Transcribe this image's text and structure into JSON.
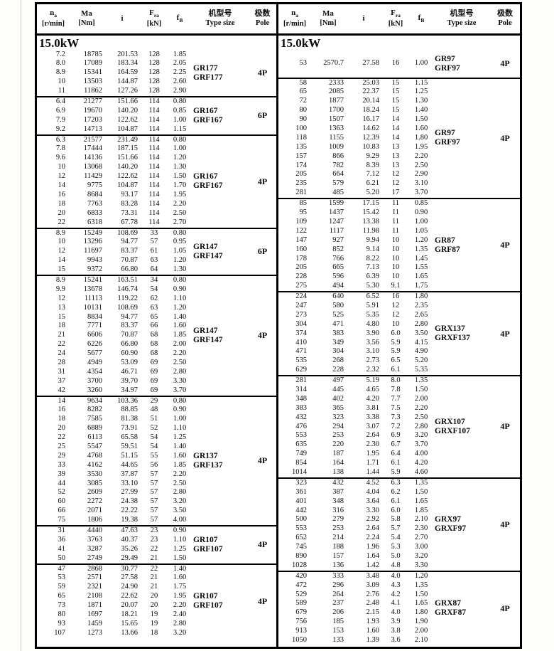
{
  "page": {
    "power_label": "15.0kW"
  },
  "header": {
    "cols": [
      {
        "key": "na",
        "sym": "n",
        "sub": "a",
        "unit": "[r/min]"
      },
      {
        "key": "ma",
        "sym": "Ma",
        "sub": "",
        "unit": "[Nm]"
      },
      {
        "key": "i",
        "sym": "i",
        "sub": "",
        "unit": ""
      },
      {
        "key": "fra",
        "sym": "F",
        "sub": "ra",
        "unit": "[kN]"
      },
      {
        "key": "fb",
        "sym": "f",
        "sub": "B",
        "unit": ""
      },
      {
        "key": "type",
        "cn": "机型号",
        "en": "Type size"
      },
      {
        "key": "pole",
        "cn": "极数",
        "en": "Pole"
      }
    ]
  },
  "left_groups": [
    {
      "type_lines": [
        "GR177",
        "GRF177"
      ],
      "pole": "4P",
      "rows": [
        [
          "7.2",
          "18785",
          "201.53",
          "128",
          "1.85"
        ],
        [
          "8.0",
          "17089",
          "183.34",
          "128",
          "2.05"
        ],
        [
          "8.9",
          "15341",
          "164.59",
          "128",
          "2.25"
        ],
        [
          "10",
          "13503",
          "144.87",
          "128",
          "2.60"
        ],
        [
          "11",
          "11862",
          "127.26",
          "128",
          "2.90"
        ]
      ]
    },
    {
      "type_lines": [
        "GR167",
        "GRF167"
      ],
      "pole": "6P",
      "rows": [
        [
          "6.4",
          "21277",
          "151.66",
          "114",
          "0.80"
        ],
        [
          "6.9",
          "19670",
          "140.20",
          "114",
          "0.85"
        ],
        [
          "7.9",
          "17203",
          "122.62",
          "114",
          "1.00"
        ],
        [
          "9.2",
          "14713",
          "104.87",
          "114",
          "1.15"
        ]
      ]
    },
    {
      "type_lines": [
        "GR167",
        "GRF167"
      ],
      "pole": "4P",
      "rows": [
        [
          "6.3",
          "21577",
          "231.49",
          "114",
          "0.80"
        ],
        [
          "7.8",
          "17444",
          "187.15",
          "114",
          "1.00"
        ],
        [
          "9.6",
          "14136",
          "151.66",
          "114",
          "1.20"
        ],
        [
          "10",
          "13068",
          "140.20",
          "114",
          "1.30"
        ],
        [
          "12",
          "11429",
          "122.62",
          "114",
          "1.50"
        ],
        [
          "14",
          "9775",
          "104.87",
          "114",
          "1.70"
        ],
        [
          "16",
          "8684",
          "93.17",
          "114",
          "1.95"
        ],
        [
          "18",
          "7763",
          "83.28",
          "114",
          "2.20"
        ],
        [
          "20",
          "6833",
          "73.31",
          "114",
          "2.50"
        ],
        [
          "22",
          "6318",
          "67.78",
          "114",
          "2.70"
        ]
      ]
    },
    {
      "type_lines": [
        "GR147",
        "GRF147"
      ],
      "pole": "6P",
      "rows": [
        [
          "8.9",
          "15249",
          "108.69",
          "33",
          "0.80"
        ],
        [
          "10",
          "13296",
          "94.77",
          "57",
          "0.95"
        ],
        [
          "12",
          "11697",
          "83.37",
          "61",
          "1.05"
        ],
        [
          "14",
          "9943",
          "70.87",
          "63",
          "1.20"
        ],
        [
          "15",
          "9372",
          "66.80",
          "64",
          "1.30"
        ]
      ]
    },
    {
      "type_lines": [
        "GR147",
        "GRF147"
      ],
      "pole": "4P",
      "rows": [
        [
          "8.9",
          "15241",
          "163.51",
          "34",
          "0.80"
        ],
        [
          "9.9",
          "13678",
          "146.74",
          "54",
          "0.90"
        ],
        [
          "12",
          "11113",
          "119.22",
          "62",
          "1.10"
        ],
        [
          "13",
          "10131",
          "108.69",
          "63",
          "1.20"
        ],
        [
          "15",
          "8834",
          "94.77",
          "65",
          "1.40"
        ],
        [
          "18",
          "7771",
          "83.37",
          "66",
          "1.60"
        ],
        [
          "21",
          "6606",
          "70.87",
          "68",
          "1.85"
        ],
        [
          "22",
          "6226",
          "66.80",
          "68",
          "2.00"
        ],
        [
          "24",
          "5677",
          "60.90",
          "68",
          "2.20"
        ],
        [
          "28",
          "4949",
          "53.09",
          "69",
          "2.50"
        ],
        [
          "31",
          "4354",
          "46.71",
          "69",
          "2.80"
        ],
        [
          "37",
          "3700",
          "39.70",
          "69",
          "3.30"
        ],
        [
          "42",
          "3260",
          "34.97",
          "69",
          "3.70"
        ]
      ]
    },
    {
      "type_lines": [
        "GR137",
        "GRF137"
      ],
      "pole": "4P",
      "rows": [
        [
          "14",
          "9634",
          "103.36",
          "29",
          "0.80"
        ],
        [
          "16",
          "8282",
          "88.85",
          "48",
          "0.90"
        ],
        [
          "18",
          "7585",
          "81.38",
          "51",
          "1.00"
        ],
        [
          "20",
          "6889",
          "73.91",
          "52",
          "1.10"
        ],
        [
          "22",
          "6113",
          "65.58",
          "54",
          "1.25"
        ],
        [
          "25",
          "5547",
          "59.51",
          "54",
          "1.40"
        ],
        [
          "29",
          "4768",
          "51.15",
          "55",
          "1.60"
        ],
        [
          "33",
          "4162",
          "44.65",
          "56",
          "1.85"
        ],
        [
          "39",
          "3530",
          "37.87",
          "57",
          "2.20"
        ],
        [
          "44",
          "3085",
          "33.10",
          "57",
          "2.50"
        ],
        [
          "52",
          "2609",
          "27.99",
          "57",
          "2.80"
        ],
        [
          "60",
          "2272",
          "24.38",
          "57",
          "3.20"
        ],
        [
          "66",
          "2071",
          "22.22",
          "57",
          "3.50"
        ],
        [
          "75",
          "1806",
          "19.38",
          "57",
          "4.00"
        ]
      ]
    },
    {
      "type_lines": [
        "GR107",
        "GRF107"
      ],
      "pole": "4P",
      "rows": [
        [
          "31",
          "4440",
          "47.63",
          "23",
          "0.90"
        ],
        [
          "36",
          "3763",
          "40.37",
          "23",
          "1.10"
        ],
        [
          "41",
          "3287",
          "35.26",
          "22",
          "1.25"
        ],
        [
          "50",
          "2749",
          "29.49",
          "21",
          "1.50"
        ]
      ]
    },
    {
      "type_lines": [
        "GR107",
        "GRF107"
      ],
      "pole": "4P",
      "rows": [
        [
          "47",
          "2868",
          "30.77",
          "22",
          "1.40"
        ],
        [
          "53",
          "2571",
          "27.58",
          "21",
          "1.60"
        ],
        [
          "59",
          "2321",
          "24.90",
          "21",
          "1.75"
        ],
        [
          "65",
          "2108",
          "22.62",
          "20",
          "1.95"
        ],
        [
          "73",
          "1871",
          "20.07",
          "20",
          "2.20"
        ],
        [
          "80",
          "1697",
          "18.21",
          "19",
          "2.40"
        ],
        [
          "93",
          "1459",
          "15.65",
          "19",
          "2.80"
        ],
        [
          "107",
          "1273",
          "13.66",
          "18",
          "3.20"
        ]
      ]
    }
  ],
  "right_groups": [
    {
      "type_lines": [
        "GR97",
        "GRF97"
      ],
      "pole": "4P",
      "tall": true,
      "rows": [
        [
          "53",
          "2570.7",
          "27.58",
          "16",
          "1.00"
        ]
      ]
    },
    {
      "type_lines": [
        "GR97",
        "GRF97"
      ],
      "pole": "4P",
      "rows": [
        [
          "58",
          "2333",
          "25.03",
          "15",
          "1.15"
        ],
        [
          "65",
          "2085",
          "22.37",
          "15",
          "1.25"
        ],
        [
          "72",
          "1877",
          "20.14",
          "15",
          "1.30"
        ],
        [
          "80",
          "1700",
          "18.24",
          "15",
          "1.40"
        ],
        [
          "90",
          "1507",
          "16.17",
          "14",
          "1.50"
        ],
        [
          "100",
          "1363",
          "14.62",
          "14",
          "1.60"
        ],
        [
          "118",
          "1155",
          "12.39",
          "14",
          "1.80"
        ],
        [
          "135",
          "1009",
          "10.83",
          "13",
          "1.95"
        ],
        [
          "157",
          "866",
          "9.29",
          "13",
          "2.20"
        ],
        [
          "174",
          "782",
          "8.39",
          "13",
          "2.50"
        ],
        [
          "205",
          "664",
          "7.12",
          "12",
          "2.90"
        ],
        [
          "235",
          "579",
          "6.21",
          "12",
          "3.10"
        ],
        [
          "281",
          "485",
          "5.20",
          "17",
          "3.70"
        ]
      ]
    },
    {
      "type_lines": [
        "GR87",
        "GRF87"
      ],
      "pole": "4P",
      "rows": [
        [
          "85",
          "1599",
          "17.15",
          "11",
          "0.85"
        ],
        [
          "95",
          "1437",
          "15.42",
          "11",
          "0.90"
        ],
        [
          "109",
          "1247",
          "13.38",
          "11",
          "1.00"
        ],
        [
          "122",
          "1117",
          "11.98",
          "11",
          "1.05"
        ],
        [
          "147",
          "927",
          "9.94",
          "10",
          "1.20"
        ],
        [
          "160",
          "852",
          "9.14",
          "10",
          "1.35"
        ],
        [
          "178",
          "766",
          "8.22",
          "10",
          "1.45"
        ],
        [
          "205",
          "665",
          "7.13",
          "10",
          "1.55"
        ],
        [
          "228",
          "596",
          "6.39",
          "10",
          "1.65"
        ],
        [
          "275",
          "494",
          "5.30",
          "9.1",
          "1.75"
        ]
      ]
    },
    {
      "type_lines": [
        "GRX137",
        "GRXF137"
      ],
      "pole": "4P",
      "rows": [
        [
          "224",
          "640",
          "6.52",
          "16",
          "1.80"
        ],
        [
          "247",
          "580",
          "5.91",
          "12",
          "2.35"
        ],
        [
          "273",
          "525",
          "5.35",
          "12",
          "2.65"
        ],
        [
          "304",
          "471",
          "4.80",
          "10",
          "2.80"
        ],
        [
          "374",
          "383",
          "3.90",
          "6.0",
          "3.50"
        ],
        [
          "410",
          "349",
          "3.56",
          "5.9",
          "4.15"
        ],
        [
          "471",
          "304",
          "3.10",
          "5.9",
          "4.90"
        ],
        [
          "535",
          "268",
          "2.73",
          "6.5",
          "5.20"
        ],
        [
          "629",
          "228",
          "2.32",
          "6.1",
          "5.35"
        ]
      ]
    },
    {
      "type_lines": [
        "GRX107",
        "GRXF107"
      ],
      "pole": "4P",
      "rows": [
        [
          "281",
          "497",
          "5.19",
          "8.0",
          "1.35"
        ],
        [
          "314",
          "445",
          "4.65",
          "7.8",
          "1.50"
        ],
        [
          "348",
          "402",
          "4.20",
          "7.7",
          "2.00"
        ],
        [
          "383",
          "365",
          "3.81",
          "7.5",
          "2.20"
        ],
        [
          "432",
          "323",
          "3.38",
          "7.3",
          "2.50"
        ],
        [
          "476",
          "294",
          "3.07",
          "7.2",
          "2.80"
        ],
        [
          "553",
          "253",
          "2.64",
          "6.9",
          "3.20"
        ],
        [
          "635",
          "220",
          "2.30",
          "6.7",
          "3.70"
        ],
        [
          "749",
          "187",
          "1.95",
          "6.4",
          "4.00"
        ],
        [
          "854",
          "164",
          "1.71",
          "6.1",
          "4.20"
        ],
        [
          "1014",
          "138",
          "1.44",
          "5.9",
          "4.60"
        ]
      ]
    },
    {
      "type_lines": [
        "GRX97",
        "GRXF97"
      ],
      "pole": "4P",
      "rows": [
        [
          "323",
          "432",
          "4.52",
          "6.3",
          "1.35"
        ],
        [
          "361",
          "387",
          "4.04",
          "6.2",
          "1.50"
        ],
        [
          "401",
          "348",
          "3.64",
          "6.1",
          "1.65"
        ],
        [
          "442",
          "316",
          "3.30",
          "6.0",
          "1.85"
        ],
        [
          "500",
          "279",
          "2.92",
          "5.8",
          "2.10"
        ],
        [
          "553",
          "253",
          "2.64",
          "5.7",
          "2.30"
        ],
        [
          "652",
          "214",
          "2.24",
          "5.4",
          "2.70"
        ],
        [
          "745",
          "188",
          "1.96",
          "5.3",
          "3.00"
        ],
        [
          "890",
          "157",
          "1.64",
          "5.0",
          "3.20"
        ],
        [
          "1028",
          "136",
          "1.42",
          "4.8",
          "3.30"
        ]
      ]
    },
    {
      "type_lines": [
        "GRX87",
        "GRXF87"
      ],
      "pole": "4P",
      "rows": [
        [
          "420",
          "333",
          "3.48",
          "4.0",
          "1.20"
        ],
        [
          "472",
          "296",
          "3.09",
          "4.3",
          "1.35"
        ],
        [
          "529",
          "264",
          "2.76",
          "4.2",
          "1.50"
        ],
        [
          "589",
          "237",
          "2.48",
          "4.1",
          "1.65"
        ],
        [
          "679",
          "206",
          "2.15",
          "4.0",
          "1.80"
        ],
        [
          "756",
          "185",
          "1.93",
          "3.9",
          "1.90"
        ],
        [
          "913",
          "153",
          "1.60",
          "3.8",
          "2.00"
        ],
        [
          "1050",
          "133",
          "1.39",
          "3.6",
          "2.10"
        ]
      ]
    }
  ]
}
